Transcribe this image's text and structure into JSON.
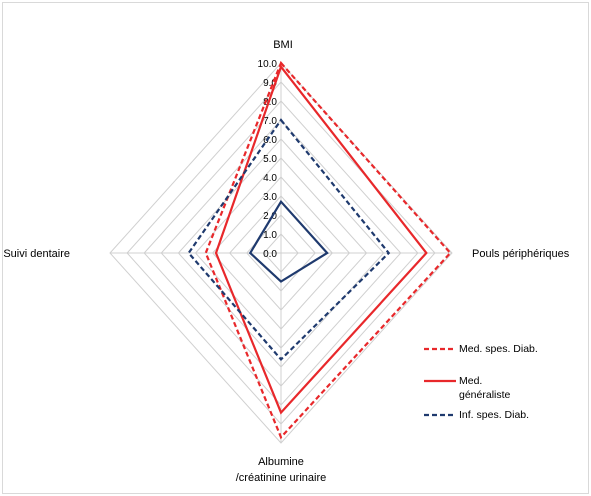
{
  "chart_data": {
    "type": "radar",
    "title": "",
    "axes": [
      "BMI",
      "Pouls périphériques",
      "Albumine /créatinine urinaire",
      "Suivi dentaire"
    ],
    "axis_label_lines": [
      [
        "BMI"
      ],
      [
        "Pouls périphériques"
      ],
      [
        "Albumine",
        "/créatinine urinaire"
      ],
      [
        "Suivi dentaire"
      ]
    ],
    "range": [
      0,
      10
    ],
    "ticks": [
      "0.0",
      "1.0",
      "2.0",
      "3.0",
      "4.0",
      "5.0",
      "6.0",
      "7.0",
      "8.0",
      "9.0",
      "10.0"
    ],
    "grid": true,
    "legend_position": "right",
    "series": [
      {
        "name": "Med. spes. Diab.",
        "name_lines": [
          "Med. spes. Diab."
        ],
        "values": [
          10.0,
          9.9,
          9.7,
          4.4
        ],
        "color": "#e8282b",
        "style": "dashed"
      },
      {
        "name": "Med. généraliste",
        "name_lines": [
          "Med.",
          "généraliste"
        ],
        "values": [
          9.8,
          8.5,
          8.4,
          3.8
        ],
        "color": "#e8282b",
        "style": "solid"
      },
      {
        "name": "Inf. spes. Diab.",
        "name_lines": [
          "Inf. spes. Diab."
        ],
        "values": [
          7.0,
          6.3,
          5.6,
          5.4
        ],
        "color": "#1f3a6e",
        "style": "dashed"
      },
      {
        "name": "",
        "name_lines": [],
        "values": [
          2.7,
          2.7,
          1.5,
          1.8
        ],
        "color": "#1f3a6e",
        "style": "solid"
      }
    ]
  }
}
